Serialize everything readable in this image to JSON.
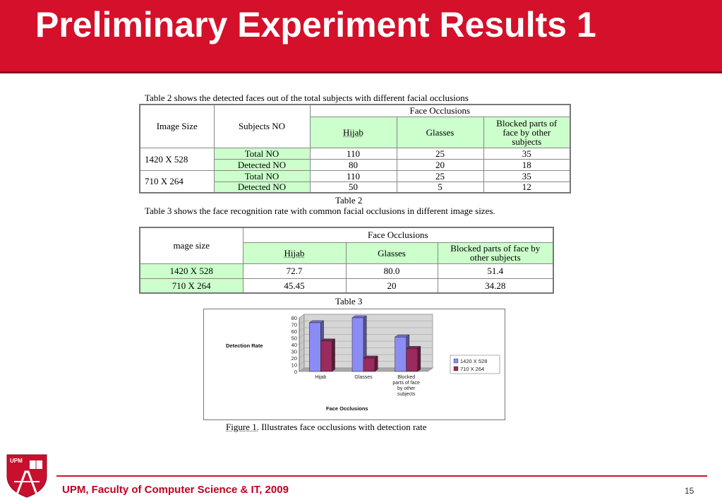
{
  "slide": {
    "title": "Preliminary Experiment Results 1"
  },
  "table2": {
    "caption_top": "Table 2 shows the detected faces out of the total subjects with different facial occlusions",
    "headers": {
      "image_size": "Image Size",
      "subjects": "Subjects NO",
      "face_occlusions": "Face Occlusions",
      "hijab": "Hijab",
      "glasses": "Glasses",
      "blocked": "Blocked parts of face by other subjects"
    },
    "rows": [
      {
        "size": "1420 X 528",
        "total_label": "Total NO",
        "total": [
          "110",
          "25",
          "35"
        ],
        "detected_label": "Detected NO",
        "detected": [
          "80",
          "20",
          "18"
        ]
      },
      {
        "size": "710 X 264",
        "total_label": "Total NO",
        "total": [
          "110",
          "25",
          "35"
        ],
        "detected_label": "Detected NO",
        "detected": [
          "50",
          "5",
          "12"
        ]
      }
    ],
    "caption_bottom": "Table 2"
  },
  "table3": {
    "caption_top": "Table 3 shows the face recognition rate with common facial occlusions in different image sizes.",
    "headers": {
      "image_size": "mage size",
      "face_occlusions": "Face Occlusions",
      "hijab": "Hijab",
      "glasses": "Glasses",
      "blocked": "Blocked parts of face by other subjects"
    },
    "rows": [
      {
        "size": "1420 X 528",
        "values": [
          "72.7",
          "80.0",
          "51.4"
        ]
      },
      {
        "size": "710 X 264",
        "values": [
          "45.45",
          "20",
          "34.28"
        ]
      }
    ],
    "caption_bottom": "Table 3"
  },
  "chart_data": {
    "type": "bar",
    "categories": [
      "Hijab",
      "Glasses",
      "Blocked parts of face by other subjects"
    ],
    "category_lines": [
      [
        "Hijab"
      ],
      [
        "Glasses"
      ],
      [
        "Blocked",
        "parts of face",
        "by other",
        "subjects"
      ]
    ],
    "series": [
      {
        "name": "1420 X 528",
        "values": [
          72.7,
          80.0,
          51.4
        ],
        "color": "#8c8cf5"
      },
      {
        "name": "710 X 264",
        "values": [
          45.45,
          20,
          34.28
        ],
        "color": "#9b2a5e"
      }
    ],
    "xlabel": "Face Occlusions",
    "ylabel": "Detection Rate",
    "ylim": [
      0,
      80
    ],
    "yticks": [
      "0",
      "10",
      "20",
      "30",
      "40",
      "50",
      "60",
      "70",
      "80"
    ],
    "grid": true,
    "legend": "right",
    "style": "3d"
  },
  "figure": {
    "caption_label": "Figure 1.",
    "caption_text": " Illustrates face occlusions with detection rate"
  },
  "footer": {
    "text": "UPM, Faculty of Computer Science & IT, 2009",
    "page": "15",
    "logo_text": "UPM"
  },
  "colors": {
    "header_red": "#d4102a",
    "table_green": "#ccffcc",
    "footer_red": "#c00020"
  }
}
